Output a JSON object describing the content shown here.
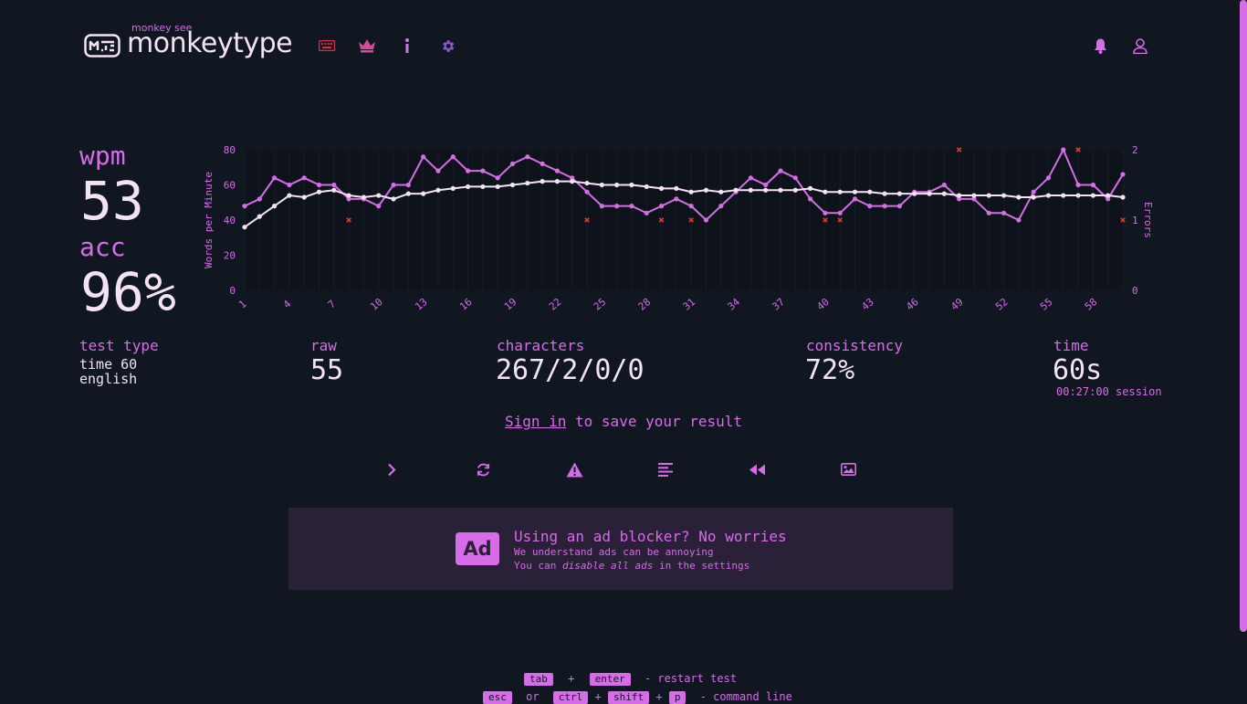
{
  "header": {
    "brand_top": "monkey see",
    "brand": "monkeytype"
  },
  "colors": {
    "accent": "#d66ce8",
    "error": "#e53935",
    "bg": "#111721",
    "text": "#f3e3f3",
    "ad_bg": "#2a2038"
  },
  "icons": {
    "nav": [
      "keyboard-icon",
      "crown-icon",
      "info-icon",
      "gear-icon"
    ],
    "right": [
      "bell-icon",
      "user-icon"
    ],
    "actions": [
      "chevron-right-icon",
      "refresh-icon",
      "warning-icon",
      "align-left-icon",
      "rewind-icon",
      "image-icon"
    ]
  },
  "stats": {
    "wpm_label": "wpm",
    "wpm": "53",
    "acc_label": "acc",
    "acc": "96%",
    "test_type_label": "test type",
    "test_type_line1": "time 60",
    "test_type_line2": "english",
    "raw_label": "raw",
    "raw": "55",
    "characters_label": "characters",
    "characters": "267/2/0/0",
    "consistency_label": "consistency",
    "consistency": "72%",
    "time_label": "time",
    "time": "60s",
    "session": "00:27:00 session"
  },
  "signin": {
    "link": "Sign in",
    "rest": " to save your result"
  },
  "ad": {
    "badge": "Ad",
    "title": "Using an ad blocker? No worries",
    "line1": "We understand ads can be annoying",
    "line2_pre": "You can ",
    "line2_em": "disable all ads",
    "line2_post": " in the settings"
  },
  "hints": {
    "tab": "tab",
    "plus": "+",
    "enter": "enter",
    "restart": "- restart test",
    "esc": "esc",
    "or": "or",
    "ctrl": "ctrl",
    "shift": "shift",
    "p": "p",
    "command": "- command line"
  },
  "chart_data": {
    "type": "line",
    "ylabel": "Words per Minute",
    "y2label": "Errors",
    "ylim": [
      0,
      80
    ],
    "y2lim": [
      0,
      2
    ],
    "yticks": [
      "0",
      "20",
      "40",
      "60",
      "80"
    ],
    "y2ticks": [
      "0",
      "1",
      "2"
    ],
    "x": [
      1,
      2,
      3,
      4,
      5,
      6,
      7,
      8,
      9,
      10,
      11,
      12,
      13,
      14,
      15,
      16,
      17,
      18,
      19,
      20,
      21,
      22,
      23,
      24,
      25,
      26,
      27,
      28,
      29,
      30,
      31,
      32,
      33,
      34,
      35,
      36,
      37,
      38,
      39,
      40,
      41,
      42,
      43,
      44,
      45,
      46,
      47,
      48,
      49,
      50,
      51,
      52,
      53,
      54,
      55,
      56,
      57,
      58,
      59,
      60
    ],
    "xticks": [
      "1",
      "4",
      "7",
      "10",
      "13",
      "16",
      "19",
      "22",
      "25",
      "28",
      "31",
      "34",
      "37",
      "40",
      "43",
      "46",
      "49",
      "52",
      "55",
      "58"
    ],
    "series": [
      {
        "values": [
          48,
          52,
          64,
          60,
          64,
          60,
          60,
          52,
          52,
          48,
          60,
          60,
          76,
          68,
          76,
          68,
          68,
          64,
          72,
          76,
          72,
          68,
          64,
          56,
          48,
          48,
          48,
          44,
          48,
          52,
          48,
          40,
          48,
          56,
          64,
          60,
          68,
          64,
          52,
          44,
          44,
          52,
          48,
          48,
          48,
          56,
          56,
          60,
          52,
          52,
          44,
          44,
          40,
          56,
          64,
          80,
          60,
          60,
          52,
          66
        ]
      },
      {
        "values": [
          36,
          42,
          48,
          54,
          53,
          56,
          57,
          54,
          53,
          54,
          52,
          55,
          55,
          57,
          58,
          59,
          59,
          59,
          60,
          61,
          62,
          62,
          62,
          61,
          60,
          60,
          60,
          59,
          58,
          58,
          56,
          57,
          56,
          57,
          57,
          57,
          57,
          57,
          58,
          56,
          56,
          56,
          56,
          55,
          55,
          55,
          55,
          55,
          54,
          54,
          54,
          54,
          53,
          53,
          54,
          54,
          54,
          54,
          54,
          53
        ]
      }
    ],
    "errors": [
      {
        "x": 8,
        "y": 1
      },
      {
        "x": 24,
        "y": 1
      },
      {
        "x": 29,
        "y": 1
      },
      {
        "x": 31,
        "y": 1
      },
      {
        "x": 40,
        "y": 1
      },
      {
        "x": 41,
        "y": 1
      },
      {
        "x": 49,
        "y": 2
      },
      {
        "x": 57,
        "y": 2
      },
      {
        "x": 60,
        "y": 1
      }
    ]
  }
}
